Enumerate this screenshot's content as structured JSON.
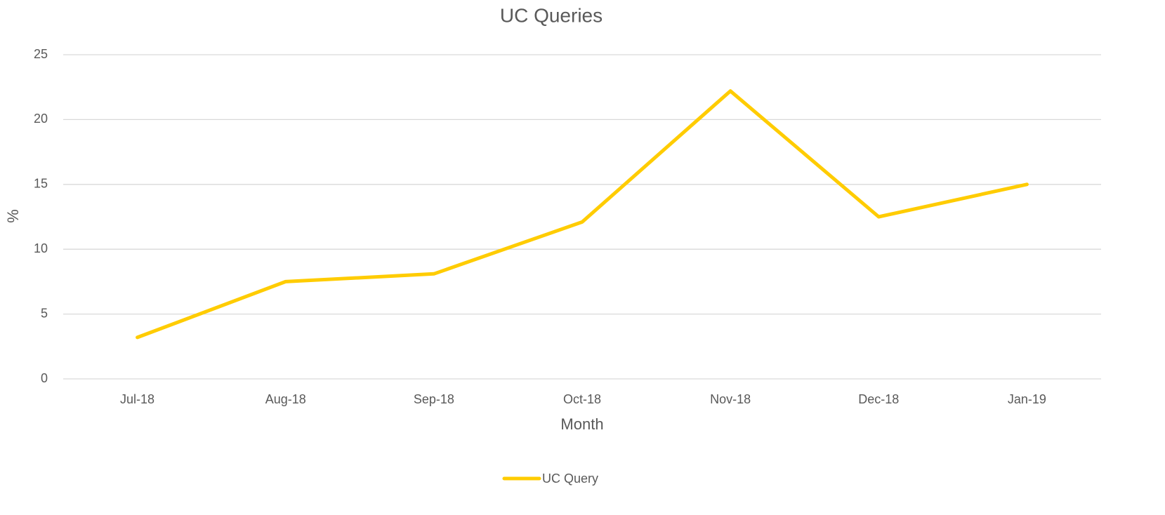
{
  "chart_data": {
    "type": "line",
    "title": "UC Queries",
    "x_label": "Month",
    "y_label": "%",
    "categories": [
      "Jul-18",
      "Aug-18",
      "Sep-18",
      "Oct-18",
      "Nov-18",
      "Dec-18",
      "Jan-19"
    ],
    "series": [
      {
        "name": "UC Query",
        "color": "#ffcc00",
        "values": [
          3.2,
          7.5,
          8.1,
          12.1,
          22.2,
          12.5,
          15.0
        ]
      }
    ],
    "ylim": [
      0,
      25
    ],
    "yticks": [
      0,
      5,
      10,
      15,
      20,
      25
    ],
    "grid": true,
    "legend": "bottom"
  }
}
